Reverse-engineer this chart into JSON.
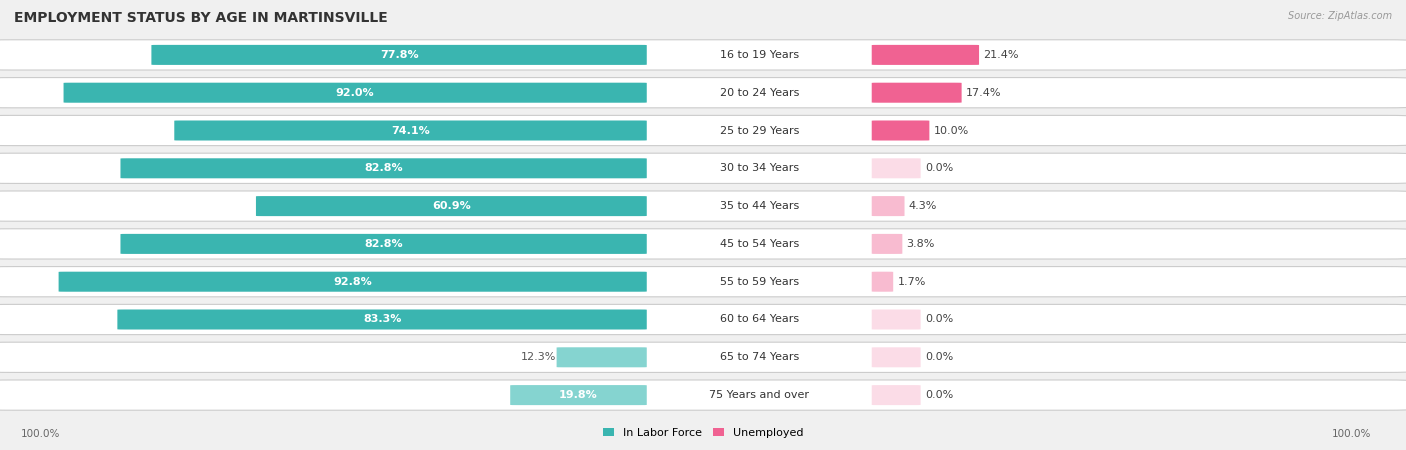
{
  "title": "EMPLOYMENT STATUS BY AGE IN MARTINSVILLE",
  "source": "Source: ZipAtlas.com",
  "categories": [
    "16 to 19 Years",
    "20 to 24 Years",
    "25 to 29 Years",
    "30 to 34 Years",
    "35 to 44 Years",
    "45 to 54 Years",
    "55 to 59 Years",
    "60 to 64 Years",
    "65 to 74 Years",
    "75 Years and over"
  ],
  "in_labor_force": [
    77.8,
    92.0,
    74.1,
    82.8,
    60.9,
    82.8,
    92.8,
    83.3,
    12.3,
    19.8
  ],
  "unemployed": [
    21.4,
    17.4,
    10.0,
    0.0,
    4.3,
    3.8,
    1.7,
    0.0,
    0.0,
    0.0
  ],
  "labor_color": "#3ab5b0",
  "labor_color_light": "#85d4d0",
  "unemployed_color": "#f06292",
  "unemployed_color_light": "#f8bbd0",
  "background_color": "#f0f0f0",
  "title_fontsize": 10,
  "bar_value_fontsize": 8,
  "cat_fontsize": 8,
  "legend_labels": [
    "In Labor Force",
    "Unemployed"
  ]
}
